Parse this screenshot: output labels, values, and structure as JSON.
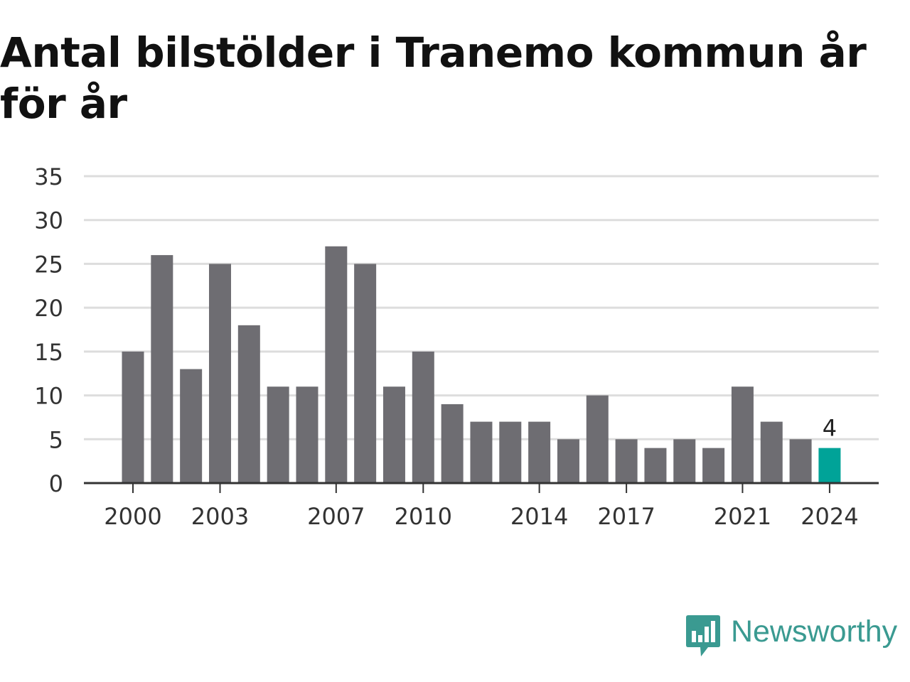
{
  "title": "Antal bilstölder i Tranemo kommun år för år",
  "brand": {
    "name": "Newsworthy",
    "color": "#3a9a91",
    "icon": "newsworthy-chart-bubble-icon"
  },
  "colors": {
    "bar": "#6e6d72",
    "highlight": "#00a398",
    "grid": "#dddddd",
    "axis": "#333333"
  },
  "chart_data": {
    "type": "bar",
    "title": "Antal bilstölder i Tranemo kommun år för år",
    "xlabel": "",
    "ylabel": "",
    "categories": [
      "2000",
      "2001",
      "2002",
      "2003",
      "2004",
      "2005",
      "2006",
      "2007",
      "2008",
      "2009",
      "2010",
      "2011",
      "2012",
      "2013",
      "2014",
      "2015",
      "2016",
      "2017",
      "2018",
      "2019",
      "2020",
      "2021",
      "2022",
      "2023",
      "2024"
    ],
    "values": [
      15,
      26,
      13,
      25,
      18,
      11,
      11,
      27,
      25,
      11,
      15,
      9,
      7,
      7,
      7,
      5,
      10,
      5,
      4,
      5,
      4,
      11,
      7,
      5,
      4
    ],
    "ylim": [
      0,
      35
    ],
    "yticks": [
      0,
      5,
      10,
      15,
      20,
      25,
      30,
      35
    ],
    "xtick_labels": [
      "2000",
      "2003",
      "2007",
      "2010",
      "2014",
      "2017",
      "2021",
      "2024"
    ],
    "highlight": {
      "category": "2024",
      "value": 4,
      "label": "4"
    },
    "grid": true,
    "legend": "none"
  }
}
